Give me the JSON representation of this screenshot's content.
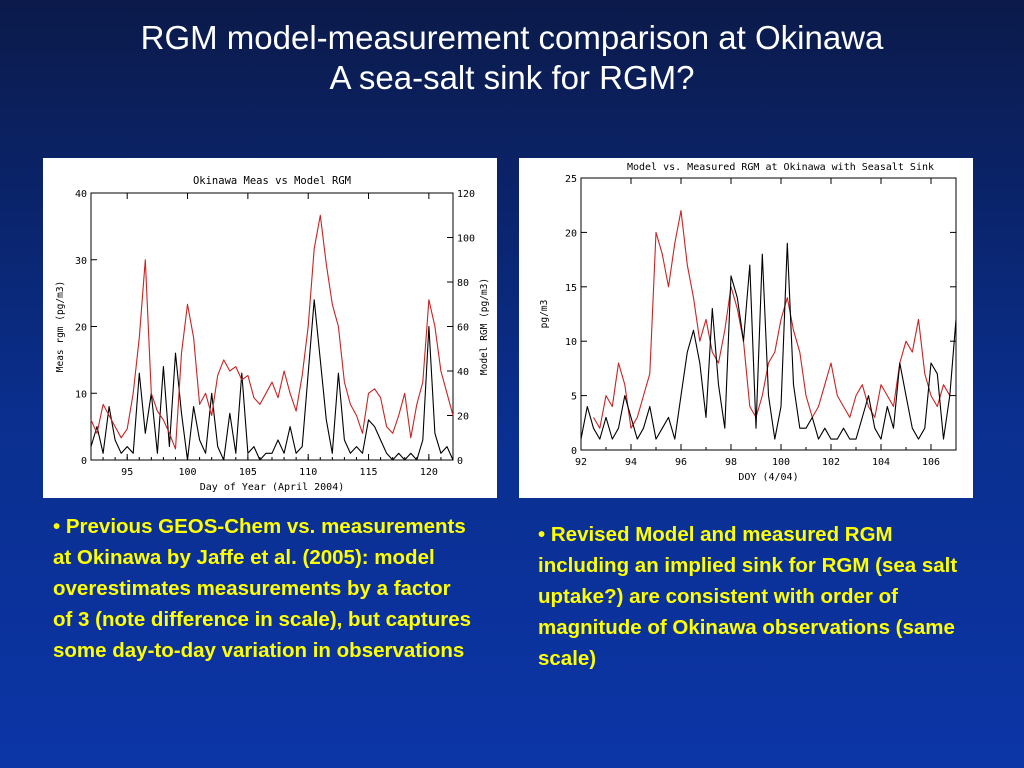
{
  "slide": {
    "title_line1": "RGM model-measurement comparison at Okinawa",
    "title_line2": "A sea-salt sink for RGM?",
    "bullet_left": "• Previous GEOS-Chem vs. measurements at Okinawa by Jaffe et al. (2005): model overestimates measurements by a factor of 3 (note difference in scale), but captures some day-to-day variation in observations",
    "bullet_right": "• Revised Model and measured RGM including an implied sink for RGM (sea salt uptake?) are consistent with order of magnitude of Okinawa observations (same scale)"
  },
  "chart_data": [
    {
      "type": "line",
      "title": "Okinawa Meas vs Model RGM",
      "xlabel": "Day of Year (April 2004)",
      "ylabel": "Meas rgm (pg/m3)",
      "y2label": "Model RGM (pg/m3)",
      "xlim": [
        92,
        122
      ],
      "ylim": [
        0,
        40
      ],
      "y2lim": [
        0,
        120
      ],
      "xticks": [
        95,
        100,
        105,
        110,
        115,
        120
      ],
      "yticks": [
        0,
        10,
        20,
        30,
        40
      ],
      "y2ticks": [
        0,
        20,
        40,
        60,
        80,
        100,
        120
      ],
      "grid": false,
      "series": [
        {
          "color": "#000000",
          "axis": "left",
          "x": [
            92,
            92.5,
            93,
            93.5,
            94,
            94.5,
            95,
            95.5,
            96,
            96.5,
            97,
            97.5,
            98,
            98.5,
            99,
            99.5,
            100,
            100.5,
            101,
            101.5,
            102,
            102.5,
            103,
            103.5,
            104,
            104.5,
            105,
            105.5,
            106,
            106.5,
            107,
            107.5,
            108,
            108.5,
            109,
            109.5,
            110,
            110.5,
            111,
            111.5,
            112,
            112.5,
            113,
            113.5,
            114,
            114.5,
            115,
            115.5,
            116,
            116.5,
            117,
            117.5,
            118,
            118.5,
            119,
            119.5,
            120,
            120.5,
            121,
            121.5,
            122
          ],
          "y": [
            2,
            5,
            1,
            8,
            3,
            1,
            2,
            1,
            13,
            4,
            10,
            1,
            14,
            2,
            16,
            7,
            0,
            8,
            3,
            1,
            10,
            2,
            0,
            7,
            1,
            13,
            1,
            2,
            0,
            1,
            1,
            3,
            1,
            5,
            1,
            2,
            13,
            24,
            15,
            6,
            1,
            13,
            3,
            1,
            2,
            1,
            6,
            5,
            3,
            1,
            0,
            1,
            0,
            1,
            0,
            3,
            20,
            4,
            1,
            2,
            0
          ]
        },
        {
          "color": "#cc2222",
          "axis": "right",
          "x": [
            92,
            92.5,
            93,
            93.5,
            94,
            94.5,
            95,
            95.5,
            96,
            96.5,
            97,
            97.5,
            98,
            98.5,
            99,
            99.5,
            100,
            100.5,
            101,
            101.5,
            102,
            102.5,
            103,
            103.5,
            104,
            104.5,
            105,
            105.5,
            106,
            106.5,
            107,
            107.5,
            108,
            108.5,
            109,
            109.5,
            110,
            110.5,
            111,
            111.5,
            112,
            112.5,
            113,
            113.5,
            114,
            114.5,
            115,
            115.5,
            116,
            116.5,
            117,
            117.5,
            118,
            118.5,
            119,
            119.5,
            120,
            120.5,
            121,
            121.5,
            122
          ],
          "y": [
            18,
            12,
            25,
            20,
            15,
            10,
            14,
            30,
            55,
            90,
            30,
            22,
            18,
            12,
            5,
            48,
            70,
            55,
            25,
            30,
            20,
            38,
            45,
            40,
            42,
            36,
            38,
            28,
            25,
            30,
            35,
            28,
            40,
            30,
            22,
            38,
            60,
            95,
            110,
            88,
            70,
            60,
            35,
            25,
            20,
            12,
            30,
            32,
            28,
            15,
            12,
            20,
            30,
            10,
            25,
            35,
            72,
            60,
            40,
            30,
            20
          ]
        }
      ]
    },
    {
      "type": "line",
      "title": "Model vs. Measured RGM at Okinawa with Seasalt Sink",
      "xlabel": "DOY (4/04)",
      "ylabel": "pg/m3",
      "xlim": [
        92,
        107
      ],
      "ylim": [
        0,
        25
      ],
      "xticks": [
        92,
        94,
        96,
        98,
        100,
        102,
        104,
        106
      ],
      "yticks": [
        0,
        5,
        10,
        15,
        20,
        25
      ],
      "grid": false,
      "series": [
        {
          "color": "#cc2222",
          "x": [
            92.5,
            92.75,
            93,
            93.25,
            93.5,
            93.75,
            94,
            94.25,
            94.5,
            94.75,
            95,
            95.25,
            95.5,
            95.75,
            96,
            96.25,
            96.5,
            96.75,
            97,
            97.25,
            97.5,
            97.75,
            98,
            98.25,
            98.5,
            98.75,
            99,
            99.25,
            99.5,
            99.75,
            100,
            100.25,
            100.5,
            100.75,
            101,
            101.25,
            101.5,
            101.75,
            102,
            102.25,
            102.5,
            102.75,
            103,
            103.25,
            103.5,
            103.75,
            104,
            104.25,
            104.5,
            104.75,
            105,
            105.25,
            105.5,
            105.75,
            106,
            106.25,
            106.5,
            106.75
          ],
          "y": [
            3,
            2,
            5,
            4,
            8,
            6,
            2,
            3,
            5,
            7,
            20,
            18,
            15,
            19,
            22,
            17,
            14,
            10,
            12,
            9,
            8,
            11,
            15,
            13,
            10,
            4,
            3,
            5,
            8,
            9,
            12,
            14,
            11,
            9,
            5,
            3,
            4,
            6,
            8,
            5,
            4,
            3,
            5,
            6,
            4,
            3,
            6,
            5,
            4,
            8,
            10,
            9,
            12,
            7,
            5,
            4,
            6,
            5
          ]
        },
        {
          "color": "#000000",
          "x": [
            92,
            92.25,
            92.5,
            92.75,
            93,
            93.25,
            93.5,
            93.75,
            94,
            94.25,
            94.5,
            94.75,
            95,
            95.25,
            95.5,
            95.75,
            96,
            96.25,
            96.5,
            96.75,
            97,
            97.25,
            97.5,
            97.75,
            98,
            98.25,
            98.5,
            98.75,
            99,
            99.25,
            99.5,
            99.75,
            100,
            100.25,
            100.5,
            100.75,
            101,
            101.25,
            101.5,
            101.75,
            102,
            102.25,
            102.5,
            102.75,
            103,
            103.25,
            103.5,
            103.75,
            104,
            104.25,
            104.5,
            104.75,
            105,
            105.25,
            105.5,
            105.75,
            106,
            106.25,
            106.5,
            106.75,
            107
          ],
          "y": [
            1,
            4,
            2,
            1,
            3,
            1,
            2,
            5,
            3,
            1,
            2,
            4,
            1,
            2,
            3,
            1,
            5,
            9,
            11,
            8,
            3,
            13,
            6,
            2,
            16,
            14,
            10,
            17,
            2,
            18,
            5,
            1,
            4,
            19,
            6,
            2,
            2,
            3,
            1,
            2,
            1,
            1,
            2,
            1,
            1,
            3,
            5,
            2,
            1,
            4,
            2,
            8,
            5,
            2,
            1,
            2,
            8,
            7,
            1,
            5,
            12
          ]
        }
      ]
    }
  ]
}
